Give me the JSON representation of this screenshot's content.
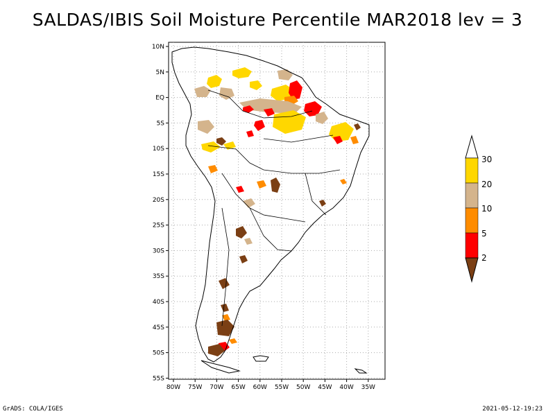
{
  "title": "SALDAS/IBIS Soil Moisture Percentile MAR2018 lev = 3",
  "footer": {
    "left": "GrADS: COLA/IGES",
    "right": "2021-05-12-19:23"
  },
  "colors": {
    "level_2": "#7b3f14",
    "level_5": "#ff0000",
    "level_10": "#ff8c00",
    "level_20": "#d4b48c",
    "level_30": "#ffd700",
    "above_30": "#ffffff"
  },
  "map": {
    "lon_ticks": [
      "80W",
      "75W",
      "70W",
      "65W",
      "60W",
      "55W",
      "50W",
      "45W",
      "40W",
      "35W"
    ],
    "lat_ticks": [
      "10N",
      "5N",
      "EQ",
      "5S",
      "10S",
      "15S",
      "20S",
      "25S",
      "30S",
      "35S",
      "40S",
      "45S",
      "50S",
      "55S"
    ],
    "grid": true
  },
  "legend": {
    "labels": [
      "30",
      "20",
      "10",
      "5",
      "2"
    ]
  }
}
